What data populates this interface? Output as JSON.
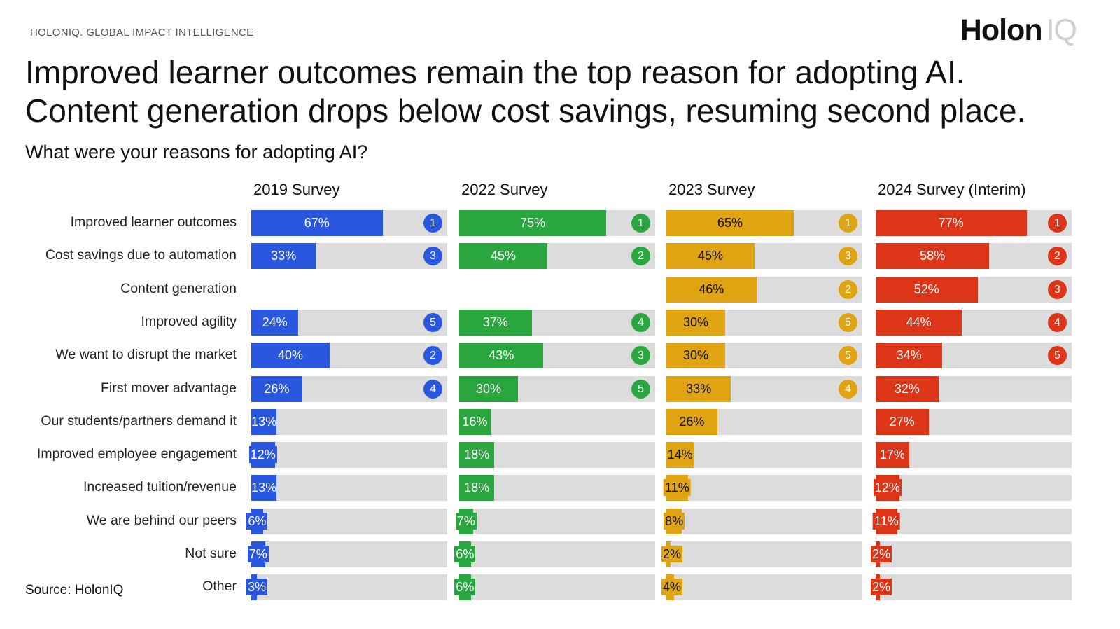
{
  "header": {
    "brand": "HOLONIQ. GLOBAL IMPACT INTELLIGENCE",
    "logo_bold": "Holon",
    "logo_light": "IQ",
    "title_line1": "Improved learner outcomes remain the top reason for adopting AI.",
    "title_line2": "Content generation drops below cost savings, resuming second place.",
    "subtitle": "What were your reasons for adopting AI?"
  },
  "footer": {
    "source": "Source: HolonIQ"
  },
  "chart_data": {
    "type": "bar",
    "title": "What were your reasons for adopting AI?",
    "xlabel": "",
    "ylabel": "",
    "value_unit": "%",
    "xlim": [
      0,
      100
    ],
    "categories": [
      "Improved learner outcomes",
      "Cost savings due to automation",
      "Content generation",
      "Improved agility",
      "We want to disrupt the market",
      "First mover advantage",
      "Our students/partners demand it",
      "Improved employee engagement",
      "Increased tuition/revenue",
      "We are behind our peers",
      "Not sure",
      "Other"
    ],
    "series": [
      {
        "name": "2019 Survey",
        "color": "#2957e0",
        "values": [
          67,
          33,
          null,
          24,
          40,
          26,
          13,
          12,
          13,
          6,
          7,
          3
        ],
        "value_labels": [
          "67%",
          "33%",
          "",
          "24%",
          "40%",
          "26%",
          "13%",
          "12%",
          "13%",
          "6%",
          "7%",
          "3%"
        ],
        "ranks": [
          1,
          3,
          null,
          5,
          2,
          4,
          null,
          null,
          null,
          null,
          null,
          null
        ]
      },
      {
        "name": "2022 Survey",
        "color": "#2aa63e",
        "values": [
          75,
          45,
          null,
          37,
          43,
          30,
          16,
          18,
          18,
          7,
          6,
          6
        ],
        "value_labels": [
          "75%",
          "45%",
          "",
          "37%",
          "43%",
          "30%",
          "16%",
          "18%",
          "18%",
          "7%",
          "6%",
          "6%"
        ],
        "ranks": [
          1,
          2,
          null,
          4,
          3,
          5,
          null,
          null,
          null,
          null,
          null,
          null
        ]
      },
      {
        "name": "2023 Survey",
        "color": "#e0a412",
        "values": [
          65,
          45,
          46,
          30,
          30,
          33,
          26,
          14,
          11,
          8,
          2,
          4
        ],
        "value_labels": [
          "65%",
          "45%",
          "46%",
          "30%",
          "30%",
          "33%",
          "26%",
          "14%",
          "11%",
          "8%",
          "2%",
          "4%"
        ],
        "ranks": [
          1,
          3,
          2,
          5,
          5,
          4,
          null,
          null,
          null,
          null,
          null,
          null
        ]
      },
      {
        "name": "2024 Survey (Interim)",
        "color": "#dc3518",
        "values": [
          77,
          58,
          52,
          44,
          34,
          32,
          27,
          17,
          12,
          11,
          2,
          2
        ],
        "value_labels": [
          "77%",
          "58%",
          "52%",
          "44%",
          "34%",
          "32%",
          "27%",
          "17%",
          "12%",
          "11%",
          "2%",
          "2%"
        ],
        "ranks": [
          1,
          2,
          3,
          4,
          5,
          null,
          null,
          null,
          null,
          null,
          null,
          null
        ]
      }
    ]
  }
}
